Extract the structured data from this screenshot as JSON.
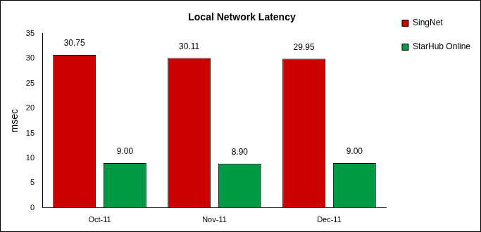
{
  "chart_data": {
    "type": "bar",
    "title": "Local Network Latency",
    "y_label": "msec",
    "categories": [
      "Oct-11",
      "Nov-11",
      "Dec-11"
    ],
    "series": [
      {
        "name": "SingNet",
        "color": "#cc0000",
        "values": [
          30.75,
          30.11,
          29.95
        ],
        "value_labels": [
          "30.75",
          "30.11",
          "29.95"
        ]
      },
      {
        "name": "StarHub Online",
        "color": "#009a44",
        "values": [
          9.0,
          8.9,
          9.0
        ],
        "value_labels": [
          "9.00",
          "8.90",
          "9.00"
        ]
      }
    ],
    "ylim": [
      0,
      35
    ],
    "yticks": [
      0,
      5,
      10,
      15,
      20,
      25,
      30,
      35
    ],
    "grid": false,
    "legend": "right",
    "data_labels": true
  }
}
